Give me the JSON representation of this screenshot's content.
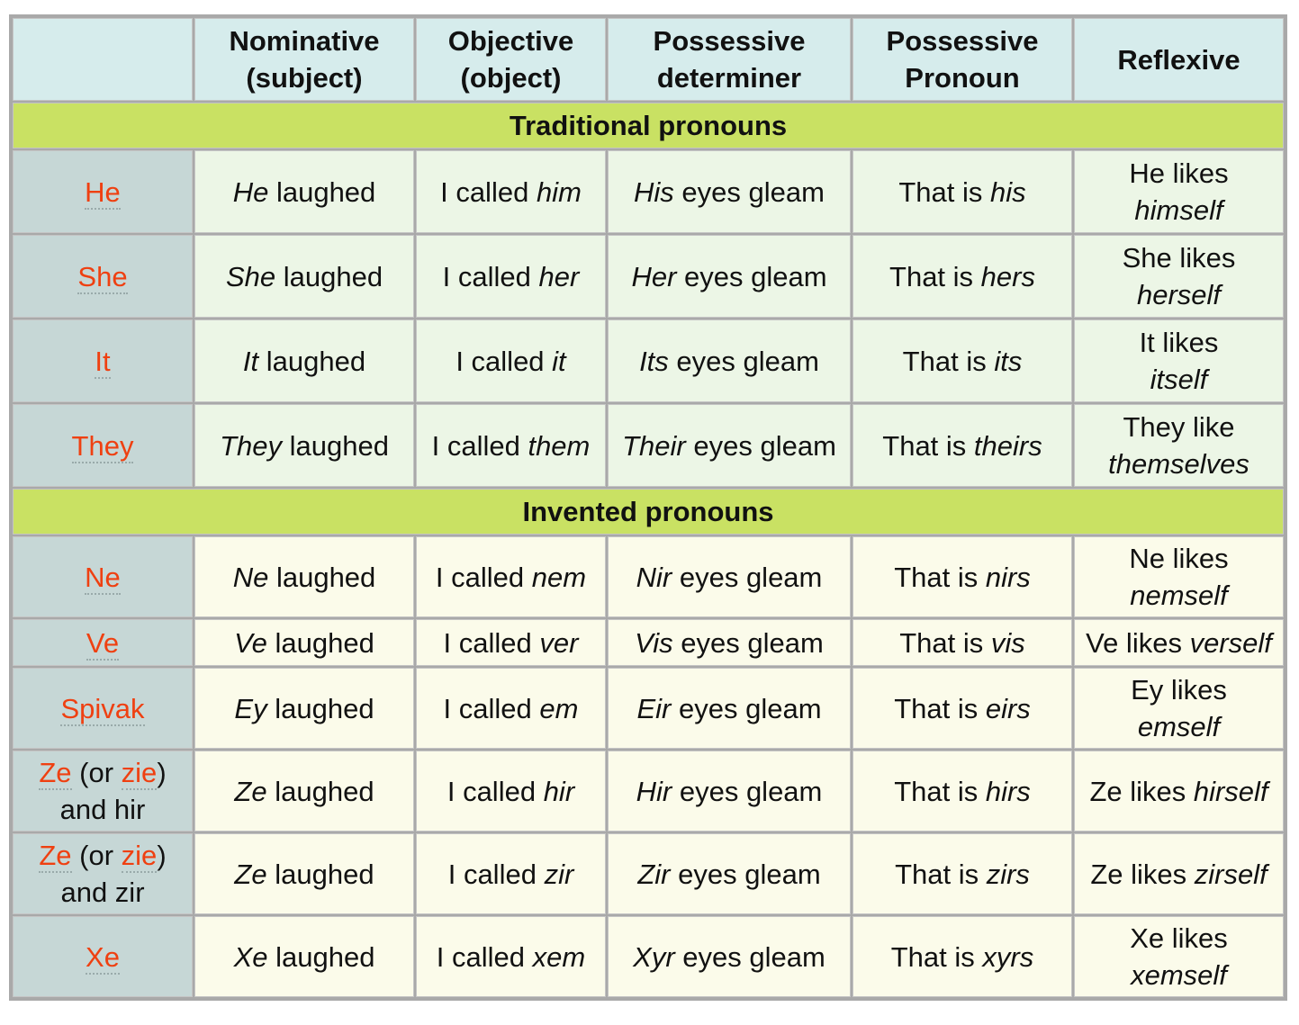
{
  "header": [
    "",
    "Nominative\n(subject)",
    "Objective\n(object)",
    "Possessive\ndeterminer",
    "Possessive\nPronoun",
    "Reflexive"
  ],
  "sections": [
    {
      "title": "Traditional pronouns",
      "kind": "trad",
      "rows": [
        {
          "label": [
            {
              "t": "He",
              "term": true
            }
          ],
          "nom": {
            "i": "He",
            "r": " laughed"
          },
          "obj": {
            "p": "I called ",
            "i": "him"
          },
          "det": {
            "i": "His",
            "r": " eyes gleam"
          },
          "pro": {
            "p": "That is ",
            "i": "his"
          },
          "refl": {
            "p": "He likes",
            "i": "himself",
            "wrap": true
          }
        },
        {
          "label": [
            {
              "t": "She",
              "term": true
            }
          ],
          "nom": {
            "i": "She",
            "r": " laughed"
          },
          "obj": {
            "p": "I called ",
            "i": "her"
          },
          "det": {
            "i": "Her",
            "r": " eyes gleam"
          },
          "pro": {
            "p": "That is ",
            "i": "hers"
          },
          "refl": {
            "p": "She likes",
            "i": "herself",
            "wrap": true
          }
        },
        {
          "label": [
            {
              "t": "It",
              "term": true
            }
          ],
          "nom": {
            "i": "It",
            "r": " laughed"
          },
          "obj": {
            "p": "I called ",
            "i": "it"
          },
          "det": {
            "i": "Its",
            "r": " eyes gleam"
          },
          "pro": {
            "p": "That is ",
            "i": "its"
          },
          "refl": {
            "p": "It likes",
            "i": "itself",
            "wrap": true
          }
        },
        {
          "label": [
            {
              "t": "They",
              "term": true
            }
          ],
          "nom": {
            "i": "They",
            "r": " laughed"
          },
          "obj": {
            "p": "I called ",
            "i": "them"
          },
          "det": {
            "i": "Their",
            "r": " eyes gleam"
          },
          "pro": {
            "p": "That is ",
            "i": "theirs"
          },
          "refl": {
            "p": "They like",
            "i": "themselves",
            "wrap": true
          }
        }
      ]
    },
    {
      "title": "Invented pronouns",
      "kind": "inv",
      "rows": [
        {
          "label": [
            {
              "t": "Ne",
              "term": true
            }
          ],
          "nom": {
            "i": "Ne",
            "r": " laughed"
          },
          "obj": {
            "p": "I called ",
            "i": "nem"
          },
          "det": {
            "i": "Nir",
            "r": " eyes gleam"
          },
          "pro": {
            "p": "That is ",
            "i": "nirs"
          },
          "refl": {
            "p": "Ne likes",
            "i": "nemself",
            "wrap": true
          }
        },
        {
          "short": true,
          "label": [
            {
              "t": "Ve",
              "term": true
            }
          ],
          "nom": {
            "i": "Ve",
            "r": " laughed"
          },
          "obj": {
            "p": "I called ",
            "i": "ver"
          },
          "det": {
            "i": "Vis",
            "r": " eyes gleam"
          },
          "pro": {
            "p": "That is ",
            "i": "vis"
          },
          "refl": {
            "p": "Ve likes ",
            "i": "verself"
          }
        },
        {
          "label": [
            {
              "t": "Spivak",
              "term": true
            }
          ],
          "nom": {
            "i": "Ey",
            "r": " laughed"
          },
          "obj": {
            "p": "I called ",
            "i": "em"
          },
          "det": {
            "i": "Eir",
            "r": " eyes gleam"
          },
          "pro": {
            "p": "That is ",
            "i": "eirs"
          },
          "refl": {
            "p": "Ey likes",
            "i": "emself",
            "wrap": true
          }
        },
        {
          "label": [
            {
              "t": "Ze",
              "term": true
            },
            {
              "t": " (or "
            },
            {
              "t": "zie",
              "term": true
            },
            {
              "t": ")"
            },
            {
              "br": true
            },
            {
              "t": "and hir"
            }
          ],
          "nom": {
            "i": "Ze",
            "r": " laughed"
          },
          "obj": {
            "p": "I called ",
            "i": "hir"
          },
          "det": {
            "i": "Hir",
            "r": " eyes gleam"
          },
          "pro": {
            "p": "That is ",
            "i": "hirs"
          },
          "refl": {
            "p": "Ze likes ",
            "i": "hirself"
          }
        },
        {
          "label": [
            {
              "t": "Ze",
              "term": true
            },
            {
              "t": " (or "
            },
            {
              "t": "zie",
              "term": true
            },
            {
              "t": ")"
            },
            {
              "br": true
            },
            {
              "t": "and zir"
            }
          ],
          "nom": {
            "i": "Ze",
            "r": " laughed"
          },
          "obj": {
            "p": "I called ",
            "i": "zir"
          },
          "det": {
            "i": "Zir",
            "r": " eyes gleam"
          },
          "pro": {
            "p": "That is ",
            "i": "zirs"
          },
          "refl": {
            "p": "Ze likes ",
            "i": "zirself"
          }
        },
        {
          "label": [
            {
              "t": "Xe",
              "term": true
            }
          ],
          "nom": {
            "i": "Xe",
            "r": " laughed"
          },
          "obj": {
            "p": "I called ",
            "i": "xem"
          },
          "det": {
            "i": "Xyr",
            "r": " eyes gleam"
          },
          "pro": {
            "p": "That is ",
            "i": "xyrs"
          },
          "refl": {
            "p": "Xe likes",
            "i": "xemself",
            "wrap": true
          }
        }
      ]
    }
  ],
  "colors": {
    "term": "#ef4011",
    "section": "#c9e163",
    "header": "#d6ecec",
    "label": "#c6d7d6"
  }
}
